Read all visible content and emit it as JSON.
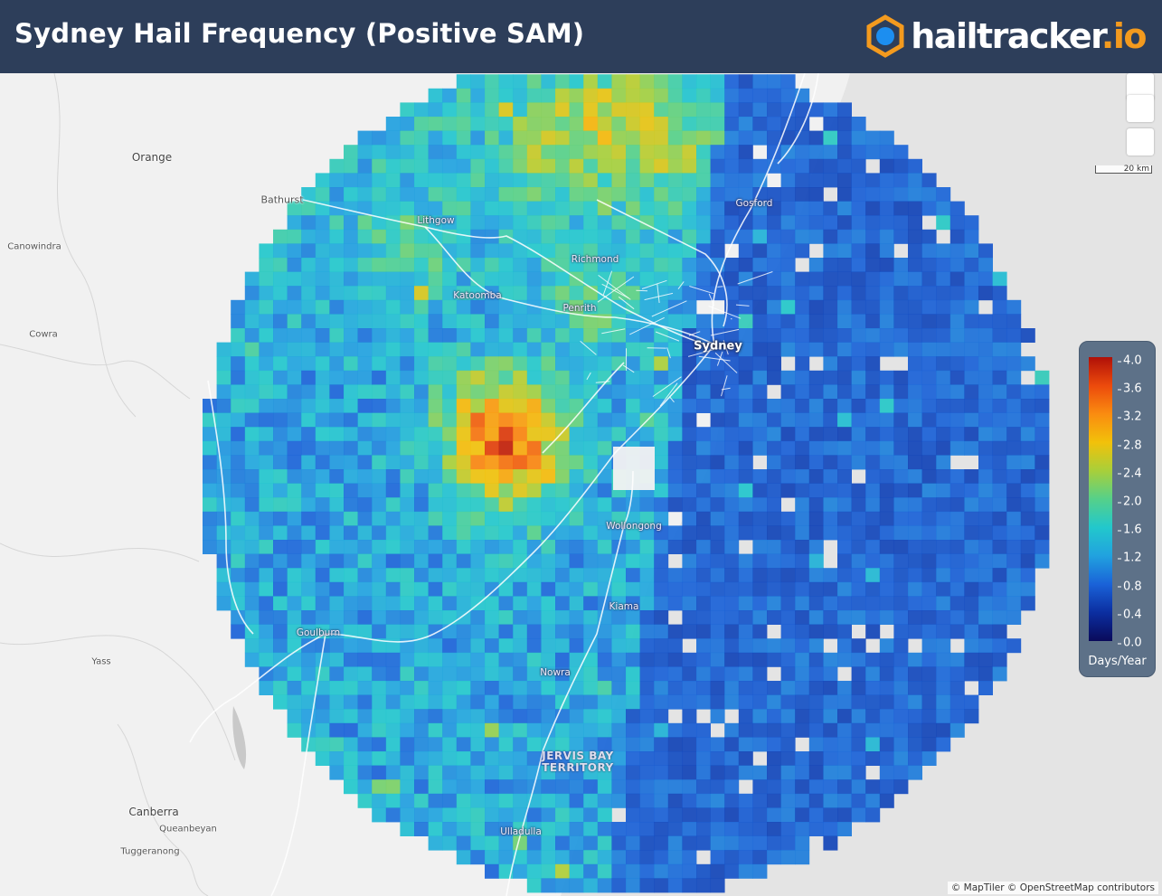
{
  "header": {
    "title": "Sydney Hail Frequency (Positive SAM)",
    "brand_main": "hailtracker",
    "brand_tld": ".io"
  },
  "colors": {
    "header_bg": "#2d3e5a",
    "brand_accent": "#f39a1e",
    "legend_bg": "#5d7188",
    "map_bg": "#f1f1f1"
  },
  "map_labels": {
    "orange": "Orange",
    "bathurst": "Bathurst",
    "canowindra": "Canowindra",
    "cowra": "Cowra",
    "lithgow": "Lithgow",
    "richmond": "Richmond",
    "katoomba": "Katoomba",
    "penrith": "Penrith",
    "gosford": "Gosford",
    "sydney": "Sydney",
    "wollongong": "Wollongong",
    "kiama": "Kiama",
    "goulburn": "Goulburn",
    "yass": "Yass",
    "nowra": "Nowra",
    "jervis_bay": "JERVIS BAY\nTERRITORY",
    "canberra": "Canberra",
    "queanbeyan": "Queanbeyan",
    "tuggeranong": "Tuggeranong",
    "ulladulla": "Ulladulla"
  },
  "scale_bar": "20 km",
  "legend": {
    "ticks": [
      "4.0",
      "3.6",
      "3.2",
      "2.8",
      "2.4",
      "2.0",
      "1.6",
      "1.2",
      "0.8",
      "0.4",
      "0.0"
    ],
    "unit": "Days/Year",
    "range": [
      0,
      4
    ]
  },
  "attribution": "© MapTiler © OpenStreetMap contributors",
  "controls": {
    "zoom_in": "zoom-in",
    "zoom_out": "zoom-out",
    "reset": "reset-view"
  }
}
